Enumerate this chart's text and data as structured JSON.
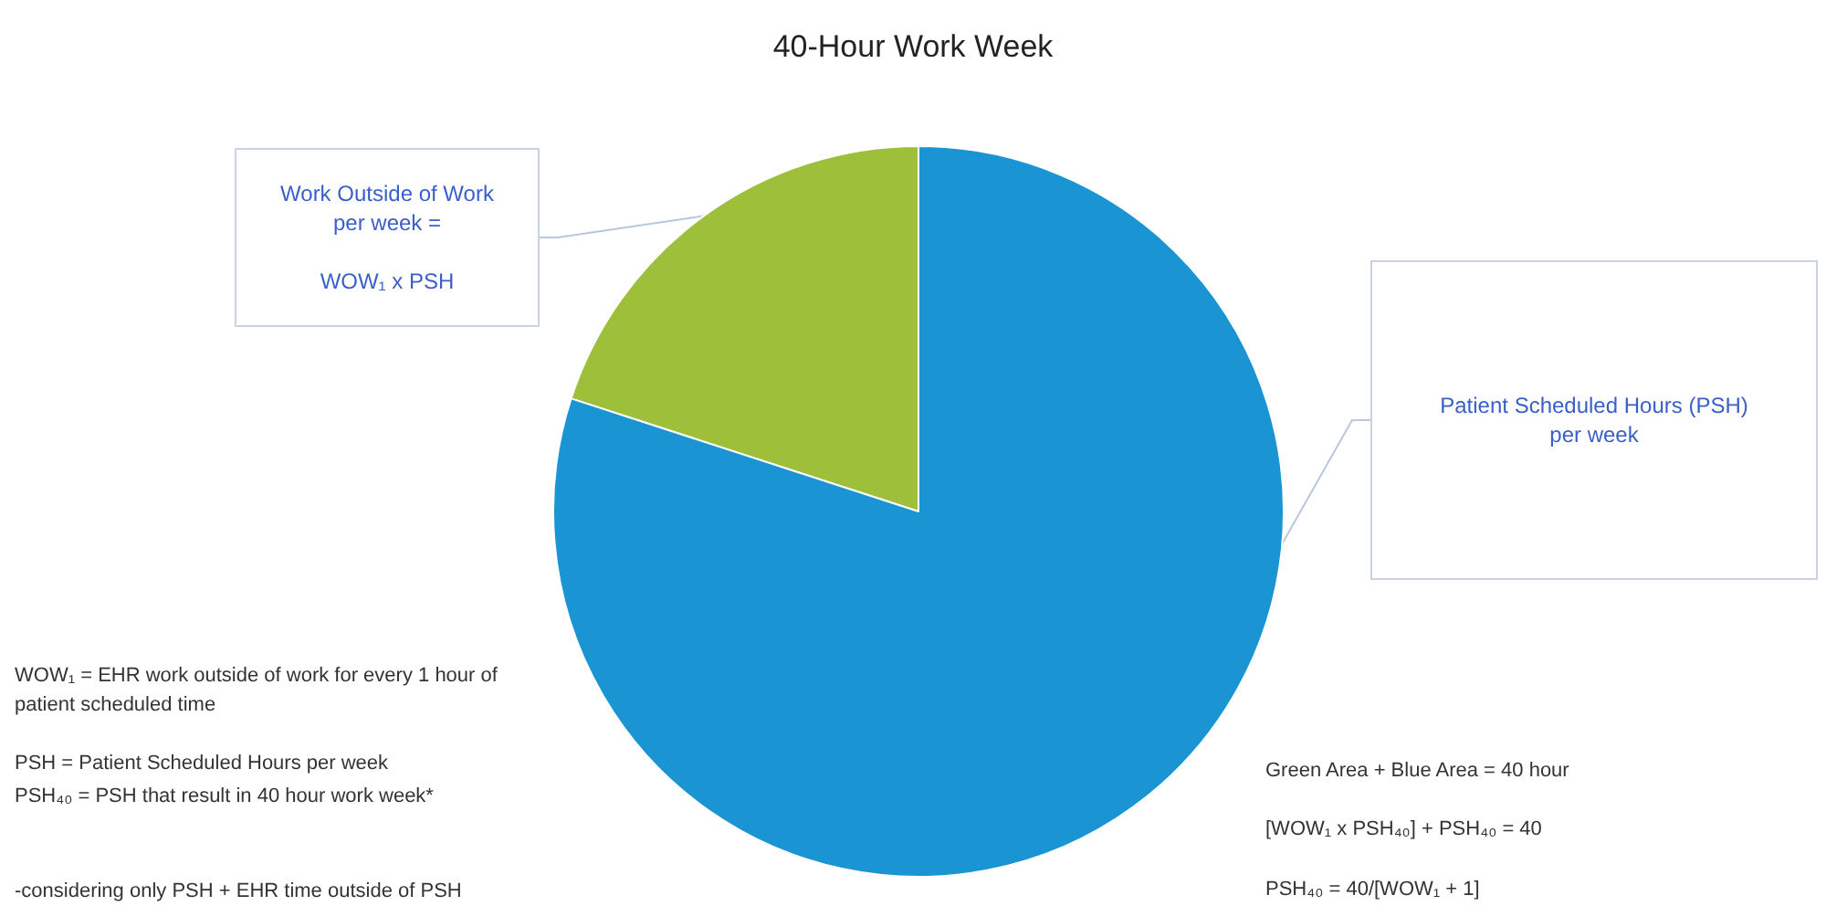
{
  "chart_data": {
    "type": "pie",
    "title": "40-Hour Work Week",
    "categories": [
      "Work Outside of Work\nper week =\n\nWOW₁ x PSH",
      "Patient Scheduled Hours (PSH)\nper week"
    ],
    "values": [
      20,
      80
    ],
    "colors": [
      "#9dbf3a",
      "#1a94d3"
    ],
    "annotations": [
      "WOW₁ = EHR work outside of work for every 1 hour of patient scheduled time",
      "PSH = Patient Scheduled Hours per week",
      "PSH₄₀ = PSH that result in 40 hour work week*",
      "-considering only PSH + EHR time outside of PSH",
      "Green Area + Blue Area = 40 hour",
      "[WOW₁ x PSH₄₀] + PSH₄₀ = 40",
      "PSH₄₀ = 40/[WOW₁ + 1]"
    ]
  }
}
